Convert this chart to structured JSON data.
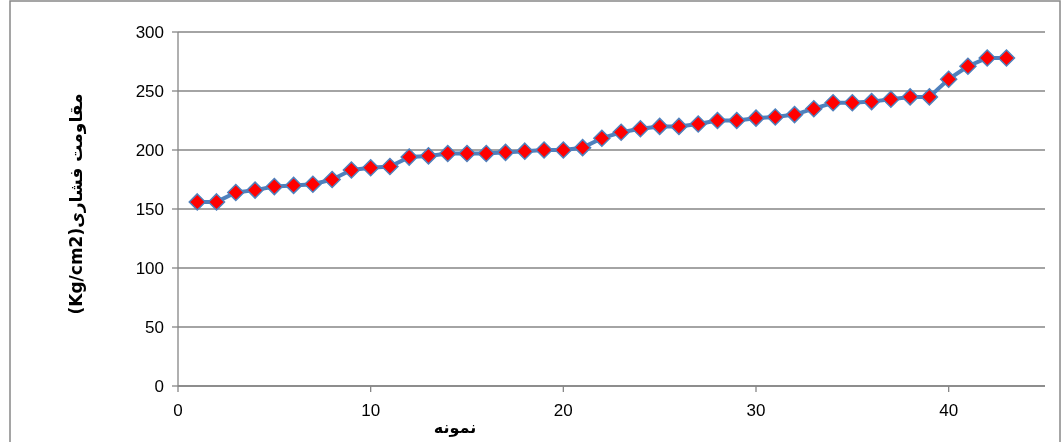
{
  "chart_data": {
    "type": "line",
    "xlabel": "نمونه",
    "ylabel": "مقاومت فشاری(Kg/cm2)",
    "x": [
      1,
      2,
      3,
      4,
      5,
      6,
      7,
      8,
      9,
      10,
      11,
      12,
      13,
      14,
      15,
      16,
      17,
      18,
      19,
      20,
      21,
      22,
      23,
      24,
      25,
      26,
      27,
      28,
      29,
      30,
      31,
      32,
      33,
      34,
      35,
      36,
      37,
      38,
      39,
      40,
      41,
      42,
      43
    ],
    "series": [
      {
        "color": "#4f81bd",
        "colors": [
          "#ff0000",
          "#ff0000",
          "#ff0000",
          "#ff0000",
          "#ff0000",
          "#ff0000",
          "#ff0000",
          "#ff0000",
          "#ff0000",
          "#ff0000",
          "#ff0000",
          "#ff0000",
          "#ff0000",
          "#ff0000",
          "#ff0000",
          "#ff0000",
          "#ff0000",
          "#ff0000",
          "#ff0000",
          "#ff0000",
          "#ff0000",
          "#ff0000",
          "#ff0000",
          "#ff0000",
          "#ff0000",
          "#ff0000",
          "#ff0000",
          "#ff0000",
          "#ff0000",
          "#ff0000",
          "#ff0000",
          "#ff0000",
          "#ff0000",
          "#ff0000",
          "#ff0000",
          "#ff0000",
          "#ff0000",
          "#ff0000",
          "#ff0000",
          "#ff0000",
          "#ff0000",
          "#ff0000",
          "#ff0000"
        ],
        "values": [
          156,
          156,
          164,
          166,
          169,
          170,
          171,
          175,
          183,
          185,
          186,
          194,
          195,
          197,
          197,
          197,
          198,
          199,
          200,
          200,
          202,
          210,
          215,
          218,
          220,
          220,
          222,
          225,
          225,
          227,
          228,
          230,
          235,
          240,
          240,
          241,
          243,
          245,
          245,
          260,
          271,
          278,
          278
        ]
      }
    ],
    "xlim": [
      0,
      45
    ],
    "xticks": [
      0,
      10,
      20,
      30,
      40
    ],
    "ylim": [
      0,
      300
    ],
    "yticks": [
      0,
      50,
      100,
      150,
      200,
      250,
      300
    ],
    "grid": "y",
    "marker": "diamond",
    "line_style": "solid"
  }
}
